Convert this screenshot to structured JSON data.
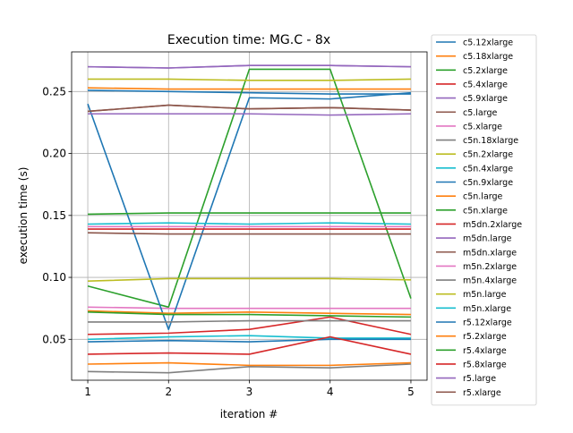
{
  "chart_data": {
    "type": "line",
    "title": "Execution time: MG.C - 8x",
    "xlabel": "iteration #",
    "ylabel": "execution time (s)",
    "x": [
      1,
      2,
      3,
      4,
      5
    ],
    "xlim": [
      0.8,
      5.2
    ],
    "ylim": [
      0.017,
      0.282
    ],
    "xticks": [
      1,
      2,
      3,
      4,
      5
    ],
    "xtick_labels": [
      "1",
      "2",
      "3",
      "4",
      "5"
    ],
    "yticks": [
      0.05,
      0.1,
      0.15,
      0.2,
      0.25
    ],
    "ytick_labels": [
      "0.05",
      "0.10",
      "0.15",
      "0.20",
      "0.25"
    ],
    "grid": true,
    "legend_position": "outside-right",
    "series": [
      {
        "name": "c5.12xlarge",
        "color": "#1f77b4",
        "values": [
          0.251,
          0.25,
          0.249,
          0.248,
          0.248
        ]
      },
      {
        "name": "c5.18xlarge",
        "color": "#ff7f0e",
        "values": [
          0.253,
          0.252,
          0.252,
          0.252,
          0.252
        ]
      },
      {
        "name": "c5.2xlarge",
        "color": "#2ca02c",
        "values": [
          0.093,
          0.076,
          0.268,
          0.268,
          0.083
        ]
      },
      {
        "name": "c5.4xlarge",
        "color": "#d62728",
        "values": [
          0.054,
          0.055,
          0.058,
          0.068,
          0.054
        ]
      },
      {
        "name": "c5.9xlarge",
        "color": "#9467bd",
        "values": [
          0.27,
          0.269,
          0.271,
          0.271,
          0.27
        ]
      },
      {
        "name": "c5.large",
        "color": "#8c564b",
        "values": [
          0.234,
          0.239,
          0.236,
          0.237,
          0.235
        ]
      },
      {
        "name": "c5.xlarge",
        "color": "#e377c2",
        "values": [
          0.076,
          0.075,
          0.075,
          0.075,
          0.075
        ]
      },
      {
        "name": "c5n.18xlarge",
        "color": "#7f7f7f",
        "values": [
          0.024,
          0.023,
          0.028,
          0.027,
          0.03
        ]
      },
      {
        "name": "c5n.2xlarge",
        "color": "#bcbd22",
        "values": [
          0.26,
          0.26,
          0.259,
          0.259,
          0.26
        ]
      },
      {
        "name": "c5n.4xlarge",
        "color": "#17becf",
        "values": [
          0.05,
          0.052,
          0.053,
          0.051,
          0.051
        ]
      },
      {
        "name": "c5n.9xlarge",
        "color": "#1f77b4",
        "values": [
          0.24,
          0.058,
          0.245,
          0.244,
          0.249
        ]
      },
      {
        "name": "c5n.large",
        "color": "#ff7f0e",
        "values": [
          0.073,
          0.071,
          0.072,
          0.071,
          0.07
        ]
      },
      {
        "name": "c5n.xlarge",
        "color": "#2ca02c",
        "values": [
          0.151,
          0.152,
          0.152,
          0.152,
          0.152
        ]
      },
      {
        "name": "m5dn.2xlarge",
        "color": "#d62728",
        "values": [
          0.139,
          0.139,
          0.139,
          0.139,
          0.139
        ]
      },
      {
        "name": "m5dn.large",
        "color": "#9467bd",
        "values": [
          0.232,
          0.232,
          0.232,
          0.231,
          0.232
        ]
      },
      {
        "name": "m5dn.xlarge",
        "color": "#8c564b",
        "values": [
          0.136,
          0.135,
          0.135,
          0.135,
          0.135
        ]
      },
      {
        "name": "m5n.2xlarge",
        "color": "#e377c2",
        "values": [
          0.141,
          0.141,
          0.141,
          0.141,
          0.141
        ]
      },
      {
        "name": "m5n.4xlarge",
        "color": "#7f7f7f",
        "values": [
          0.064,
          0.064,
          0.065,
          0.065,
          0.065
        ]
      },
      {
        "name": "m5n.large",
        "color": "#bcbd22",
        "values": [
          0.097,
          0.099,
          0.099,
          0.099,
          0.098
        ]
      },
      {
        "name": "m5n.xlarge",
        "color": "#17becf",
        "values": [
          0.143,
          0.144,
          0.143,
          0.144,
          0.143
        ]
      },
      {
        "name": "r5.12xlarge",
        "color": "#1f77b4",
        "values": [
          0.048,
          0.049,
          0.048,
          0.05,
          0.05
        ]
      },
      {
        "name": "r5.2xlarge",
        "color": "#ff7f0e",
        "values": [
          0.03,
          0.031,
          0.029,
          0.029,
          0.031
        ]
      },
      {
        "name": "r5.4xlarge",
        "color": "#2ca02c",
        "values": [
          0.072,
          0.07,
          0.07,
          0.069,
          0.068
        ]
      },
      {
        "name": "r5.8xlarge",
        "color": "#d62728",
        "values": [
          0.038,
          0.039,
          0.038,
          0.052,
          0.038
        ]
      },
      {
        "name": "r5.large",
        "color": "#9467bd",
        "values": [
          0.27,
          0.269,
          0.271,
          0.271,
          0.27
        ]
      },
      {
        "name": "r5.xlarge",
        "color": "#8c564b",
        "values": [
          0.234,
          0.239,
          0.236,
          0.237,
          0.235
        ]
      }
    ]
  }
}
